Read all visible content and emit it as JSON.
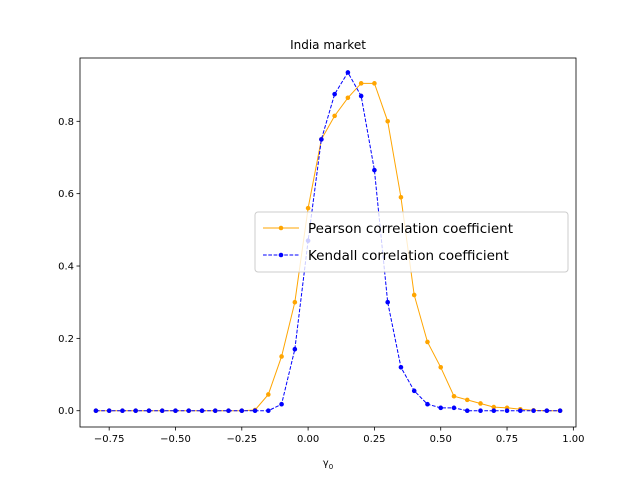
{
  "chart_data": {
    "type": "line",
    "title": "India market",
    "xlabel": "γ0",
    "xlabel_main": "γ",
    "xlabel_sub": "0",
    "ylabel": "",
    "xlim": [
      -0.86,
      1.01
    ],
    "ylim": [
      -0.045,
      0.975
    ],
    "xticks": [
      -0.75,
      -0.5,
      -0.25,
      0.0,
      0.25,
      0.5,
      0.75,
      1.0
    ],
    "xtick_labels": [
      "−0.75",
      "−0.50",
      "−0.25",
      "0.00",
      "0.25",
      "0.50",
      "0.75",
      "1.00"
    ],
    "yticks": [
      0.0,
      0.2,
      0.4,
      0.6,
      0.8
    ],
    "ytick_labels": [
      "0.0",
      "0.2",
      "0.4",
      "0.6",
      "0.8"
    ],
    "grid": false,
    "legend_position": "center-right",
    "x": [
      -0.8,
      -0.75,
      -0.7,
      -0.65,
      -0.6,
      -0.55,
      -0.5,
      -0.45,
      -0.4,
      -0.35,
      -0.3,
      -0.25,
      -0.2,
      -0.15,
      -0.1,
      -0.05,
      0.0,
      0.05,
      0.1,
      0.15,
      0.2,
      0.25,
      0.3,
      0.35,
      0.4,
      0.45,
      0.5,
      0.55,
      0.6,
      0.65,
      0.7,
      0.75,
      0.8,
      0.85,
      0.9,
      0.95
    ],
    "series": [
      {
        "name": "Pearson correlation coefficient",
        "color": "#ffa500",
        "dash": "solid",
        "values": [
          0,
          0,
          0,
          0,
          0,
          0,
          0,
          0,
          0,
          0,
          0,
          0,
          0.002,
          0.045,
          0.15,
          0.3,
          0.56,
          0.75,
          0.815,
          0.865,
          0.905,
          0.905,
          0.8,
          0.59,
          0.32,
          0.19,
          0.12,
          0.04,
          0.03,
          0.02,
          0.01,
          0.008,
          0.004,
          0.001,
          0,
          0
        ]
      },
      {
        "name": "Kendall correlation coefficient",
        "color": "#0000ff",
        "dash": "dashed",
        "values": [
          0,
          0,
          0,
          0,
          0,
          0,
          0,
          0,
          0,
          0,
          0,
          0,
          0,
          0,
          0.018,
          0.17,
          0.47,
          0.75,
          0.875,
          0.935,
          0.87,
          0.665,
          0.3,
          0.12,
          0.055,
          0.018,
          0.008,
          0.008,
          0,
          0,
          0,
          0,
          0,
          0,
          0,
          0
        ]
      }
    ]
  }
}
